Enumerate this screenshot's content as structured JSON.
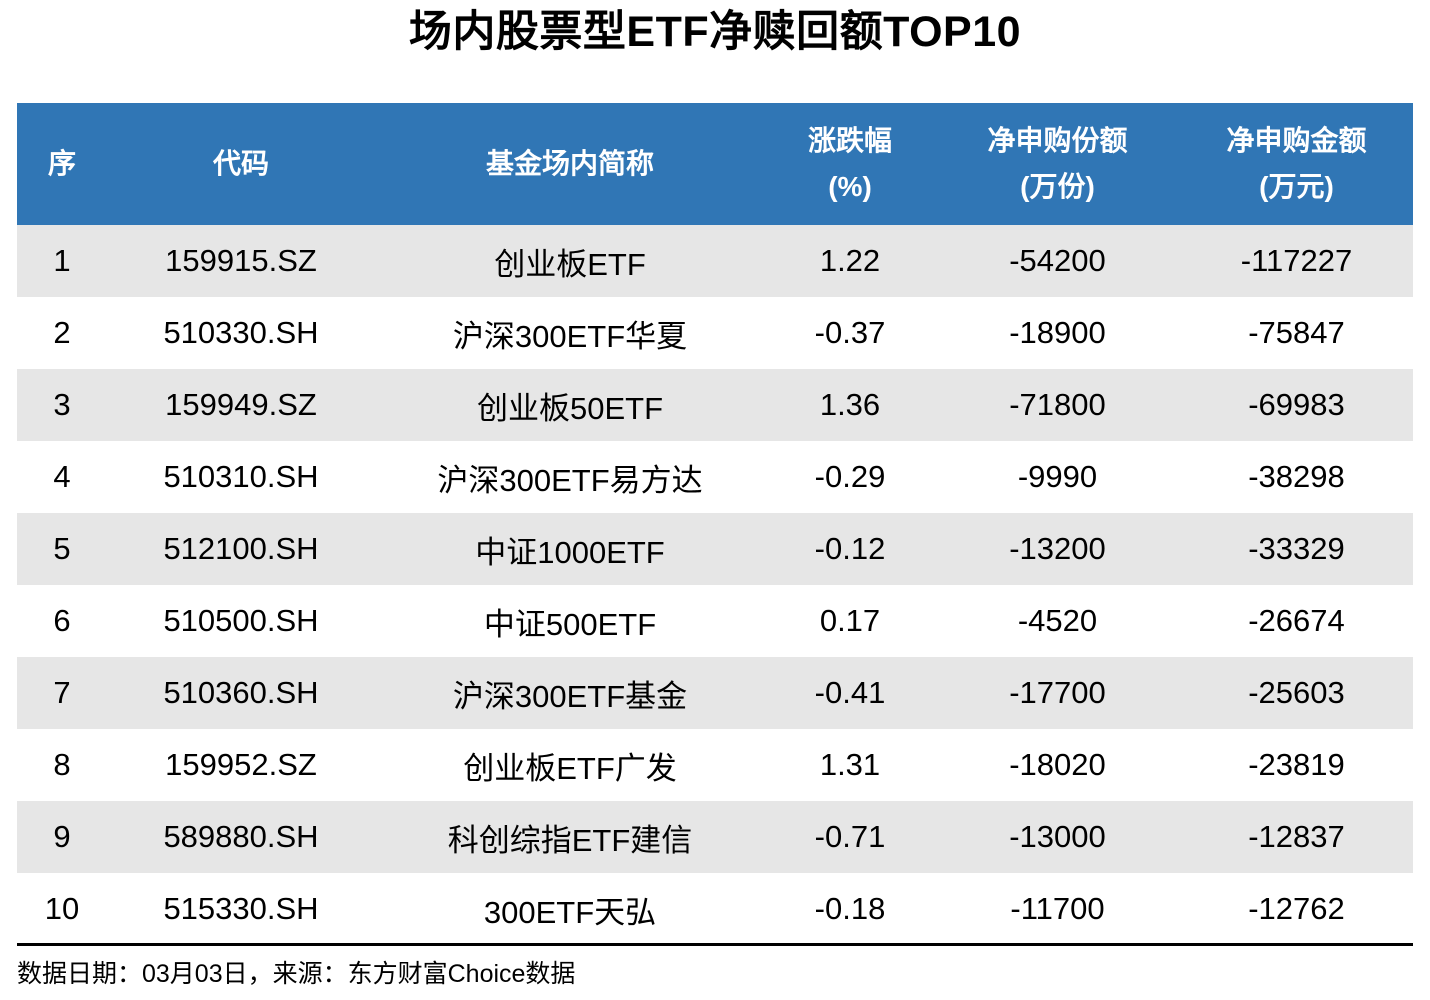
{
  "title": "场内股票型ETF净赎回额TOP10",
  "chart_data": {
    "type": "table",
    "title": "场内股票型ETF净赎回额TOP10",
    "columns": [
      {
        "label": "序",
        "unit": ""
      },
      {
        "label": "代码",
        "unit": ""
      },
      {
        "label": "基金场内简称",
        "unit": ""
      },
      {
        "label": "涨跌幅",
        "unit": "(%)"
      },
      {
        "label": "净申购份额",
        "unit": "(万份)"
      },
      {
        "label": "净申购金额",
        "unit": "(万元)"
      }
    ],
    "rows": [
      [
        "1",
        "159915.SZ",
        "创业板ETF",
        "1.22",
        "-54200",
        "-117227"
      ],
      [
        "2",
        "510330.SH",
        "沪深300ETF华夏",
        "-0.37",
        "-18900",
        "-75847"
      ],
      [
        "3",
        "159949.SZ",
        "创业板50ETF",
        "1.36",
        "-71800",
        "-69983"
      ],
      [
        "4",
        "510310.SH",
        "沪深300ETF易方达",
        "-0.29",
        "-9990",
        "-38298"
      ],
      [
        "5",
        "512100.SH",
        "中证1000ETF",
        "-0.12",
        "-13200",
        "-33329"
      ],
      [
        "6",
        "510500.SH",
        "中证500ETF",
        "0.17",
        "-4520",
        "-26674"
      ],
      [
        "7",
        "510360.SH",
        "沪深300ETF基金",
        "-0.41",
        "-17700",
        "-25603"
      ],
      [
        "8",
        "159952.SZ",
        "创业板ETF广发",
        "1.31",
        "-18020",
        "-23819"
      ],
      [
        "9",
        "589880.SH",
        "科创综指ETF建信",
        "-0.71",
        "-13000",
        "-12837"
      ],
      [
        "10",
        "515330.SH",
        "300ETF天弘",
        "-0.18",
        "-11700",
        "-12762"
      ]
    ],
    "legend": "none",
    "grid": "zebra-rows"
  },
  "footer": {
    "source_note": "数据日期：03月03日，来源：东方财富Choice数据"
  },
  "colors": {
    "header_bg": "#3076B5",
    "header_text": "#FFFFFF",
    "row_bg": "#FFFFFF",
    "row_alt_bg": "#E6E6E6",
    "text": "#000000",
    "divider": "#000000"
  }
}
